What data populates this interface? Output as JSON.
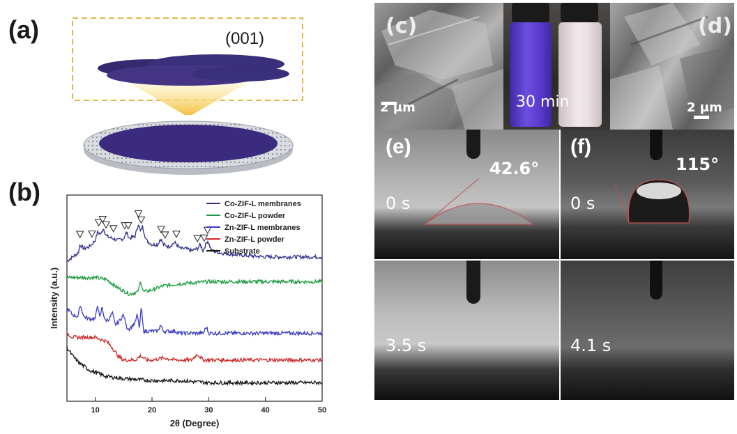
{
  "figure": {
    "panel_a": {
      "letter": "(a)",
      "plane_label": "(001)",
      "colors": {
        "platelet": "#3a2f7a",
        "membrane": "#3b2b7e",
        "frame": "#e0b84a",
        "beam": "#f3c340"
      }
    },
    "panel_b": {
      "letter": "(b)"
    },
    "panel_c": {
      "letter": "(c)",
      "scale_bar": "2 μm"
    },
    "vials": {
      "time_label": "30 min",
      "colors": {
        "left": "#5b3ccf",
        "right": "#e9dfe3"
      }
    },
    "panel_d": {
      "letter": "(d)",
      "scale_bar": "2 μm"
    },
    "panel_e": {
      "letter": "(e)",
      "angle": "42.6°",
      "time_top": "0 s",
      "time_bottom": "3.5 s"
    },
    "panel_f": {
      "letter": "(f)",
      "angle": "115°",
      "time_top": "0 s",
      "time_bottom": "4.1 s"
    }
  },
  "chart_data": {
    "type": "line",
    "xlabel": "2θ (Degree)",
    "ylabel": "Intensity (a.u.)",
    "xlim": [
      5,
      50
    ],
    "x_ticks": [
      10,
      20,
      30,
      40,
      50
    ],
    "grid": false,
    "legend_position": "top-right",
    "series": [
      {
        "name": "Co-ZIF-L membranes",
        "color": "#2e2e8c",
        "baseline": 0.7,
        "points": [
          [
            5,
            0.68
          ],
          [
            7,
            0.72
          ],
          [
            7.3,
            0.76
          ],
          [
            8,
            0.74
          ],
          [
            9,
            0.75
          ],
          [
            10,
            0.78
          ],
          [
            10.4,
            0.82
          ],
          [
            11,
            0.81
          ],
          [
            11.4,
            0.84
          ],
          [
            12,
            0.8
          ],
          [
            13,
            0.79
          ],
          [
            14,
            0.78
          ],
          [
            15,
            0.79
          ],
          [
            15.5,
            0.82
          ],
          [
            16,
            0.79
          ],
          [
            17,
            0.8
          ],
          [
            17.6,
            0.86
          ],
          [
            18,
            0.82
          ],
          [
            18.3,
            0.85
          ],
          [
            19,
            0.78
          ],
          [
            20,
            0.76
          ],
          [
            21,
            0.76
          ],
          [
            21.5,
            0.79
          ],
          [
            22,
            0.76
          ],
          [
            23,
            0.75
          ],
          [
            24,
            0.77
          ],
          [
            25,
            0.74
          ],
          [
            26,
            0.74
          ],
          [
            27,
            0.73
          ],
          [
            28,
            0.74
          ],
          [
            28.5,
            0.76
          ],
          [
            29,
            0.73
          ],
          [
            29.8,
            0.78
          ],
          [
            30.5,
            0.73
          ],
          [
            32,
            0.72
          ],
          [
            35,
            0.71
          ],
          [
            40,
            0.7
          ],
          [
            45,
            0.7
          ],
          [
            50,
            0.7
          ]
        ],
        "markers_x": [
          7.3,
          9.4,
          10.6,
          11.3,
          11.9,
          13.2,
          15.2,
          15.8,
          17.6,
          18.1,
          21.6,
          22.3,
          24.3,
          28.0,
          29.2,
          29.8
        ]
      },
      {
        "name": "Co-ZIF-L powder",
        "color": "#1a9a3c",
        "baseline": 0.58,
        "points": [
          [
            5,
            0.6
          ],
          [
            8,
            0.6
          ],
          [
            10,
            0.6
          ],
          [
            12,
            0.59
          ],
          [
            14,
            0.55
          ],
          [
            16,
            0.52
          ],
          [
            17.5,
            0.53
          ],
          [
            18,
            0.58
          ],
          [
            18.5,
            0.53
          ],
          [
            20,
            0.54
          ],
          [
            22,
            0.56
          ],
          [
            25,
            0.57
          ],
          [
            30,
            0.58
          ],
          [
            35,
            0.58
          ],
          [
            40,
            0.58
          ],
          [
            45,
            0.58
          ],
          [
            50,
            0.58
          ]
        ]
      },
      {
        "name": "Zn-ZIF-L membranes",
        "color": "#3a3ac4",
        "baseline": 0.33,
        "points": [
          [
            5,
            0.45
          ],
          [
            6,
            0.42
          ],
          [
            7,
            0.41
          ],
          [
            7.3,
            0.47
          ],
          [
            8,
            0.41
          ],
          [
            9,
            0.4
          ],
          [
            10,
            0.4
          ],
          [
            10.4,
            0.47
          ],
          [
            10.8,
            0.4
          ],
          [
            11.2,
            0.46
          ],
          [
            11.7,
            0.39
          ],
          [
            12.5,
            0.4
          ],
          [
            13,
            0.43
          ],
          [
            13.5,
            0.37
          ],
          [
            14,
            0.38
          ],
          [
            15,
            0.42
          ],
          [
            15.5,
            0.36
          ],
          [
            16,
            0.35
          ],
          [
            17,
            0.38
          ],
          [
            17.4,
            0.42
          ],
          [
            17.8,
            0.35
          ],
          [
            18.1,
            0.46
          ],
          [
            18.5,
            0.34
          ],
          [
            20,
            0.34
          ],
          [
            21,
            0.34
          ],
          [
            21.5,
            0.37
          ],
          [
            22,
            0.34
          ],
          [
            24,
            0.34
          ],
          [
            25,
            0.33
          ],
          [
            29,
            0.33
          ],
          [
            29.6,
            0.36
          ],
          [
            30,
            0.33
          ],
          [
            35,
            0.33
          ],
          [
            40,
            0.33
          ],
          [
            45,
            0.33
          ],
          [
            50,
            0.33
          ]
        ]
      },
      {
        "name": "Zn-ZIF-L powder",
        "color": "#d02828",
        "baseline": 0.2,
        "points": [
          [
            5,
            0.33
          ],
          [
            6,
            0.31
          ],
          [
            8,
            0.31
          ],
          [
            10,
            0.31
          ],
          [
            11,
            0.3
          ],
          [
            12,
            0.29
          ],
          [
            13,
            0.26
          ],
          [
            14,
            0.22
          ],
          [
            15,
            0.2
          ],
          [
            16,
            0.2
          ],
          [
            17,
            0.2
          ],
          [
            18,
            0.22
          ],
          [
            19,
            0.2
          ],
          [
            20,
            0.2
          ],
          [
            22,
            0.21
          ],
          [
            24,
            0.2
          ],
          [
            27,
            0.2
          ],
          [
            28,
            0.23
          ],
          [
            29,
            0.2
          ],
          [
            30,
            0.2
          ],
          [
            35,
            0.2
          ],
          [
            40,
            0.2
          ],
          [
            45,
            0.2
          ],
          [
            50,
            0.2
          ]
        ]
      },
      {
        "name": "Substrate",
        "color": "#111111",
        "baseline": 0.09,
        "points": [
          [
            5,
            0.26
          ],
          [
            6,
            0.22
          ],
          [
            7,
            0.19
          ],
          [
            8,
            0.17
          ],
          [
            9,
            0.15
          ],
          [
            10,
            0.14
          ],
          [
            12,
            0.12
          ],
          [
            15,
            0.11
          ],
          [
            20,
            0.1
          ],
          [
            25,
            0.1
          ],
          [
            30,
            0.09
          ],
          [
            35,
            0.09
          ],
          [
            40,
            0.09
          ],
          [
            45,
            0.09
          ],
          [
            50,
            0.09
          ]
        ]
      }
    ]
  }
}
